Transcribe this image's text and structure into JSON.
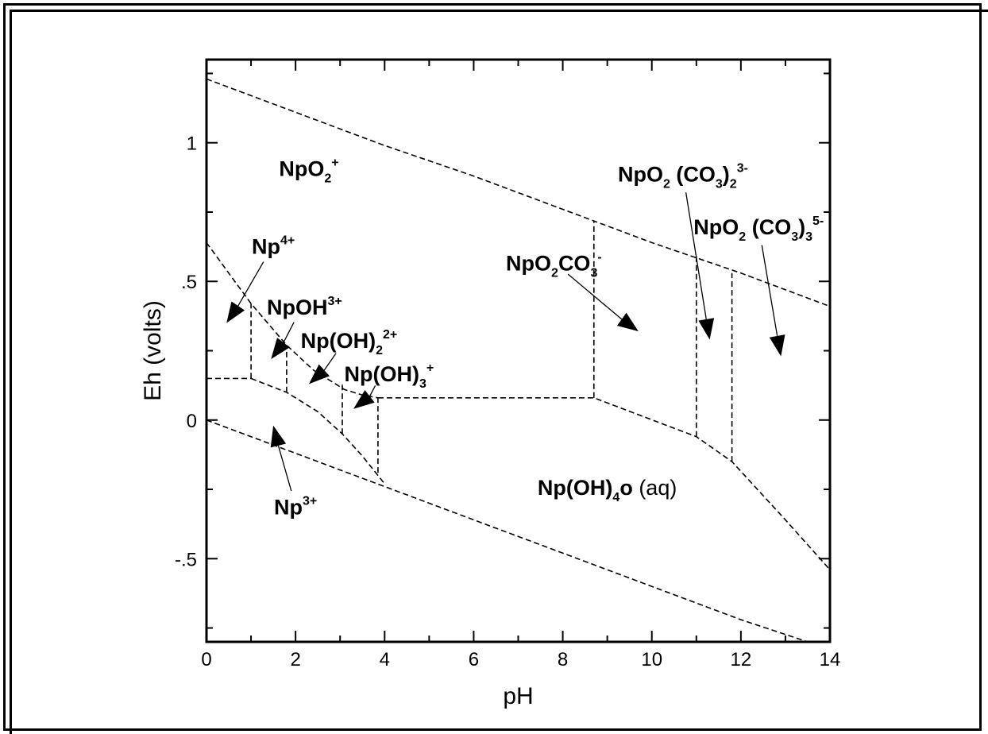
{
  "chart_data": {
    "type": "line",
    "xlabel": "pH",
    "ylabel": "Eh (volts)",
    "xlim": [
      0,
      14
    ],
    "ylim": [
      -0.8,
      1.3
    ],
    "xticks": [
      "0",
      "2",
      "4",
      "6",
      "8",
      "10",
      "12",
      "14"
    ],
    "yticks": [
      {
        "value": -0.5,
        "label": "-.5"
      },
      {
        "value": 0,
        "label": "0"
      },
      {
        "value": 0.5,
        "label": ".5"
      },
      {
        "value": 1,
        "label": "1"
      }
    ],
    "grid": false,
    "boundaries": [
      {
        "name": "upper water stability",
        "x": [
          0,
          1,
          2,
          3,
          4,
          6,
          8,
          10,
          12,
          13,
          14
        ],
        "y": [
          1.23,
          1.17,
          1.11,
          1.05,
          0.99,
          0.88,
          0.76,
          0.64,
          0.53,
          0.47,
          0.41
        ]
      },
      {
        "name": "lower water stability",
        "x": [
          0,
          1,
          2,
          3,
          4,
          6,
          8,
          10,
          12,
          13.5
        ],
        "y": [
          0,
          -0.06,
          -0.12,
          -0.18,
          -0.24,
          -0.36,
          -0.48,
          -0.6,
          -0.72,
          -0.8
        ]
      },
      {
        "name": "NpO2+ / Np(IV) boundary",
        "x": [
          0,
          0.5,
          1,
          1.8,
          2.4,
          3.1,
          3.5,
          3.85
        ],
        "y": [
          0.64,
          0.53,
          0.42,
          0.27,
          0.18,
          0.11,
          0.09,
          0.08
        ]
      },
      {
        "name": "Np(IV) / Np3+ boundary",
        "x": [
          0,
          1
        ],
        "y": [
          0.15,
          0.15
        ]
      },
      {
        "name": "Np(IV) / Np(OH)4 boundary",
        "x": [
          1,
          1.8,
          2.5,
          3.05,
          3.5,
          4.0
        ],
        "y": [
          0.15,
          0.1,
          0.03,
          -0.05,
          -0.13,
          -0.23
        ]
      },
      {
        "name": "Np(V) / Np(OH)4 boundary",
        "x": [
          3.85,
          8.7,
          11,
          11.8,
          13,
          14
        ],
        "y": [
          0.08,
          0.08,
          -0.06,
          -0.15,
          -0.36,
          -0.54
        ]
      },
      {
        "name": "Np4+ / NpOH3+",
        "x": [
          1,
          1
        ],
        "y": [
          0.15,
          0.42
        ]
      },
      {
        "name": "NpOH3+ / Np(OH)2 2+",
        "x": [
          1.8,
          1.8
        ],
        "y": [
          0.1,
          0.27
        ]
      },
      {
        "name": "Np(OH)2 2+ / Np(OH)3+",
        "x": [
          3.05,
          3.05
        ],
        "y": [
          -0.05,
          0.13
        ]
      },
      {
        "name": "Np(OH)3+ / Np(OH)4",
        "x": [
          3.85,
          3.85
        ],
        "y": [
          -0.19,
          0.08
        ]
      },
      {
        "name": "NpO2+ / NpO2CO3-",
        "x": [
          8.7,
          8.7
        ],
        "y": [
          0.08,
          0.72
        ]
      },
      {
        "name": "NpO2CO3- / NpO2(CO3)2 3-",
        "x": [
          11,
          11
        ],
        "y": [
          -0.06,
          0.59
        ]
      },
      {
        "name": "NpO2(CO3)2 3- / NpO2(CO3)3 5-",
        "x": [
          11.8,
          11.8
        ],
        "y": [
          -0.15,
          0.53
        ]
      }
    ],
    "annotations": [
      {
        "id": "npo2",
        "main": "NpO",
        "sub": "2",
        "sup": "+",
        "x": 2.3,
        "y": 0.88
      },
      {
        "id": "np4",
        "main": "Np",
        "sup": "4+",
        "x": 1.5,
        "y": 0.6,
        "arrow_to": {
          "x": 0.45,
          "y": 0.35
        }
      },
      {
        "id": "npoh3",
        "main": "NpOH",
        "sup": "3+",
        "x": 2.2,
        "y": 0.38,
        "arrow_to": {
          "x": 1.45,
          "y": 0.22
        }
      },
      {
        "id": "npoh2",
        "main": "Np(OH)",
        "sub": "2",
        "sup": "2+",
        "x": 3.2,
        "y": 0.26,
        "arrow_to": {
          "x": 2.3,
          "y": 0.13
        }
      },
      {
        "id": "npoh3p",
        "main": "Np(OH)",
        "sub": "3",
        "sup": "+",
        "x": 4.1,
        "y": 0.14,
        "arrow_to": {
          "x": 3.3,
          "y": 0.04
        }
      },
      {
        "id": "np3",
        "main": "Np",
        "sup": "3+",
        "x": 2.0,
        "y": -0.34,
        "arrow_to": {
          "x": 1.5,
          "y": -0.02
        }
      },
      {
        "id": "npo2co3",
        "main": "NpO",
        "sub": "2",
        "main2": "CO",
        "sub2": "3",
        "sup2": "-",
        "x": 7.8,
        "y": 0.54,
        "arrow_to": {
          "x": 9.7,
          "y": 0.32
        }
      },
      {
        "id": "npo2co32",
        "main": "NpO",
        "sub": "2",
        "main2": " (CO",
        "sub2": "3",
        "main3": ")",
        "sub3": "2",
        "sup3": "3-",
        "x": 10.7,
        "y": 0.86,
        "arrow_to": {
          "x": 11.3,
          "y": 0.29
        }
      },
      {
        "id": "npo2co33",
        "main": "NpO",
        "sub": "2",
        "main2": " (CO",
        "sub2": "3",
        "main3": ")",
        "sub3": "3",
        "sup3": "5-",
        "x": 12.4,
        "y": 0.67,
        "arrow_to": {
          "x": 12.9,
          "y": 0.23
        }
      },
      {
        "id": "npoh4",
        "main": "Np(OH)",
        "sub": "4",
        "main2": "o",
        "light2": " (aq)",
        "x": 9.0,
        "y": -0.27
      }
    ]
  }
}
